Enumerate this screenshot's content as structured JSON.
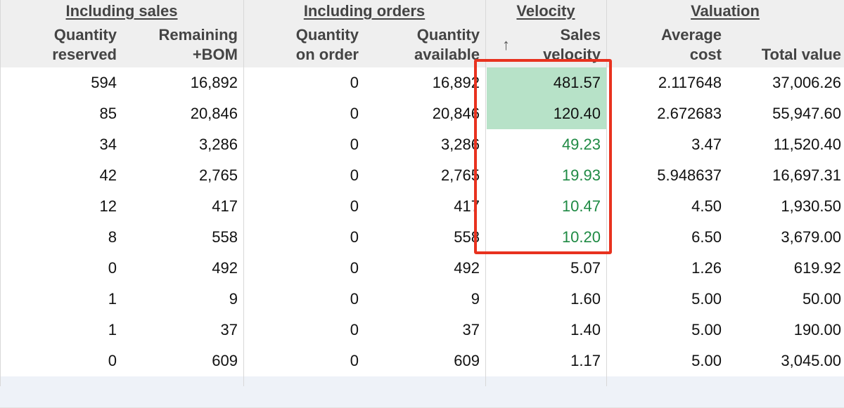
{
  "groups": {
    "sales": "Including sales",
    "orders": "Including orders",
    "velocity": "Velocity",
    "valuation": "Valuation"
  },
  "columns": {
    "qty_reserved": [
      "Quantity",
      "reserved"
    ],
    "remaining_bom": [
      "Remaining",
      "+BOM"
    ],
    "qty_on_order": [
      "Quantity",
      "on order"
    ],
    "qty_available": [
      "Quantity",
      "available"
    ],
    "sales_velocity": [
      "Sales",
      "velocity"
    ],
    "avg_cost": [
      "Average",
      "cost"
    ],
    "total_value": [
      "",
      "Total value"
    ]
  },
  "sort_indicator": "↑",
  "rows": [
    {
      "qty_reserved": "594",
      "remaining_bom": "16,892",
      "qty_on_order": "0",
      "qty_available": "16,892",
      "sales_velocity": "481.57",
      "avg_cost": "2.117648",
      "total_value": "37,006.26",
      "velocity_style": "bg"
    },
    {
      "qty_reserved": "85",
      "remaining_bom": "20,846",
      "qty_on_order": "0",
      "qty_available": "20,846",
      "sales_velocity": "120.40",
      "avg_cost": "2.672683",
      "total_value": "55,947.60",
      "velocity_style": "bg"
    },
    {
      "qty_reserved": "34",
      "remaining_bom": "3,286",
      "qty_on_order": "0",
      "qty_available": "3,286",
      "sales_velocity": "49.23",
      "avg_cost": "3.47",
      "total_value": "11,520.40",
      "velocity_style": "green"
    },
    {
      "qty_reserved": "42",
      "remaining_bom": "2,765",
      "qty_on_order": "0",
      "qty_available": "2,765",
      "sales_velocity": "19.93",
      "avg_cost": "5.948637",
      "total_value": "16,697.31",
      "velocity_style": "green"
    },
    {
      "qty_reserved": "12",
      "remaining_bom": "417",
      "qty_on_order": "0",
      "qty_available": "417",
      "sales_velocity": "10.47",
      "avg_cost": "4.50",
      "total_value": "1,930.50",
      "velocity_style": "green"
    },
    {
      "qty_reserved": "8",
      "remaining_bom": "558",
      "qty_on_order": "0",
      "qty_available": "558",
      "sales_velocity": "10.20",
      "avg_cost": "6.50",
      "total_value": "3,679.00",
      "velocity_style": "green"
    },
    {
      "qty_reserved": "0",
      "remaining_bom": "492",
      "qty_on_order": "0",
      "qty_available": "492",
      "sales_velocity": "5.07",
      "avg_cost": "1.26",
      "total_value": "619.92",
      "velocity_style": "plain"
    },
    {
      "qty_reserved": "1",
      "remaining_bom": "9",
      "qty_on_order": "0",
      "qty_available": "9",
      "sales_velocity": "1.60",
      "avg_cost": "5.00",
      "total_value": "50.00",
      "velocity_style": "plain"
    },
    {
      "qty_reserved": "1",
      "remaining_bom": "37",
      "qty_on_order": "0",
      "qty_available": "37",
      "sales_velocity": "1.40",
      "avg_cost": "5.00",
      "total_value": "190.00",
      "velocity_style": "plain"
    },
    {
      "qty_reserved": "0",
      "remaining_bom": "609",
      "qty_on_order": "0",
      "qty_available": "609",
      "sales_velocity": "1.17",
      "avg_cost": "5.00",
      "total_value": "3,045.00",
      "velocity_style": "plain"
    }
  ],
  "colors": {
    "highlight_border": "#e8321f",
    "velocity_bg": "#b7e2c8",
    "velocity_text": "#1f8a44"
  }
}
